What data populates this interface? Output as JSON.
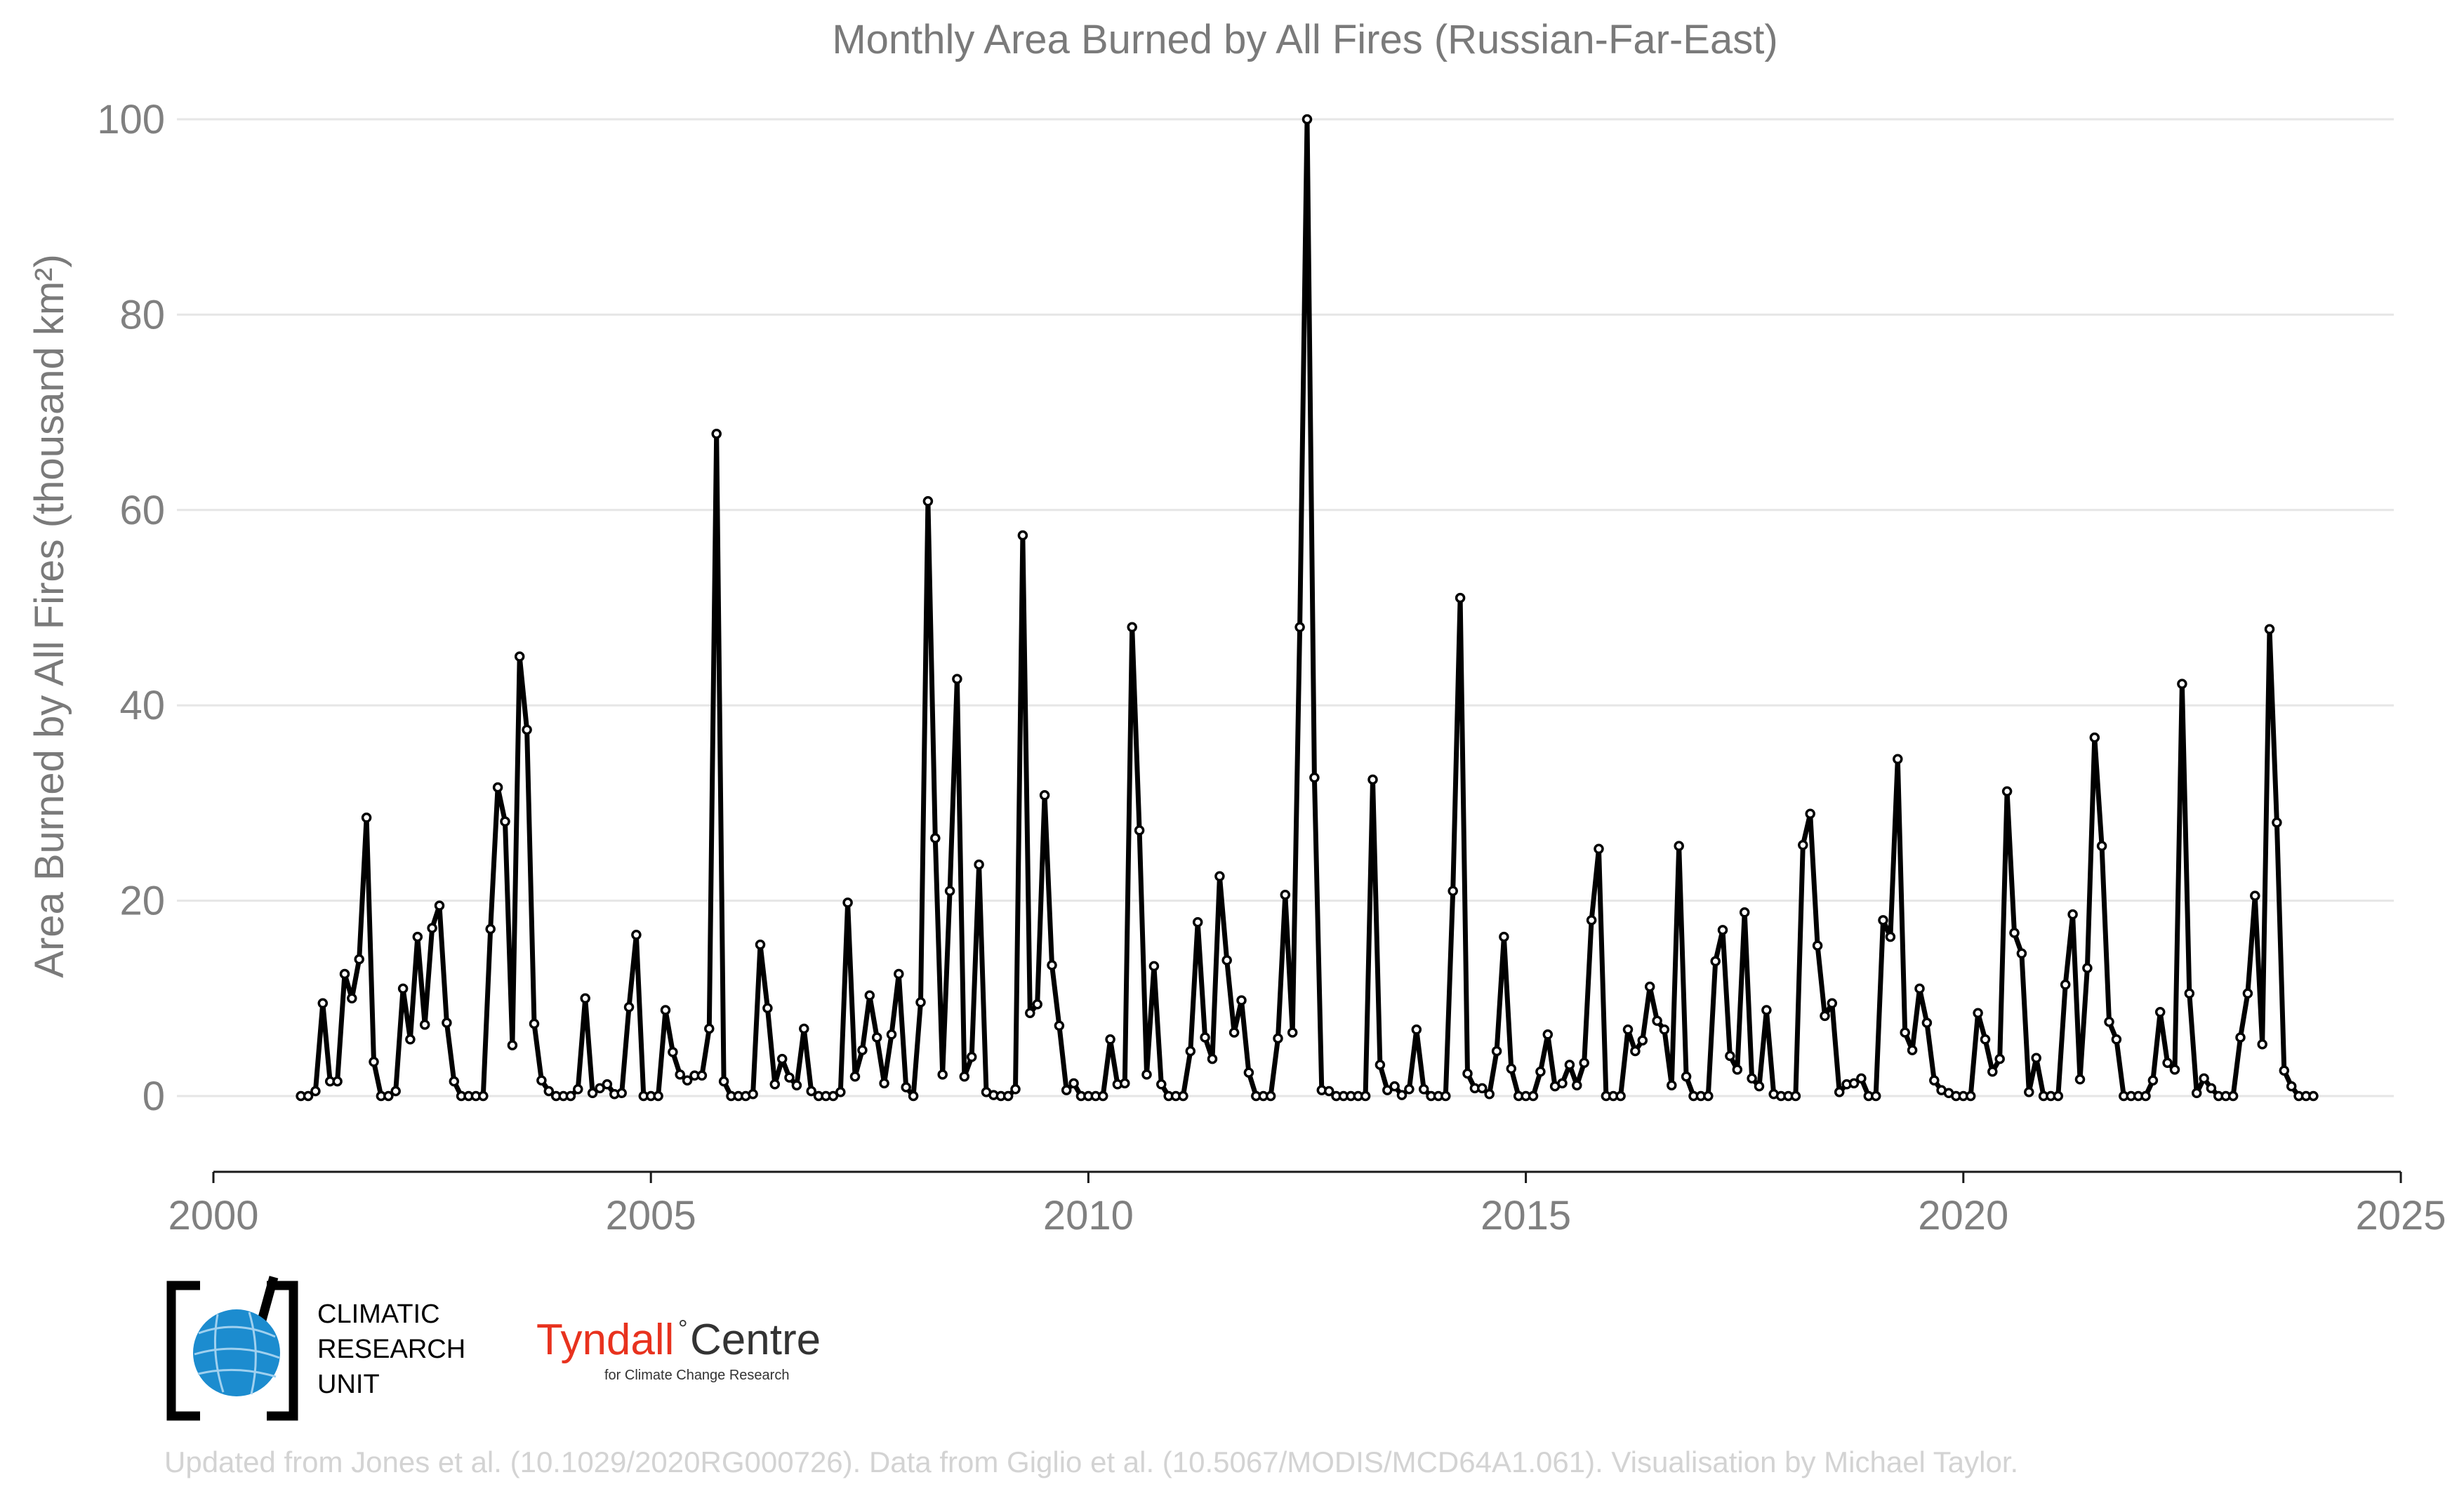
{
  "chart_data": {
    "type": "line",
    "title": "Monthly Area Burned by All Fires (Russian-Far-East)",
    "ylabel": "Area Burned by All Fires (thousand km²)",
    "xlabel": "",
    "xlim": [
      2000,
      2025
    ],
    "ylim": [
      -8,
      100
    ],
    "x_ticks": [
      2000,
      2005,
      2010,
      2015,
      2020,
      2025
    ],
    "y_ticks": [
      0,
      20,
      40,
      60,
      80,
      100
    ],
    "grid": "horizontal",
    "legend": "none",
    "line_color": "#000000",
    "marker": "open-circle",
    "start": "2001-01",
    "frequency": "monthly",
    "end": "2024-01",
    "values": [
      0,
      0,
      0.5,
      9.5,
      1.5,
      1.5,
      12.5,
      10,
      14,
      28.5,
      3.5,
      0,
      0,
      0.5,
      11,
      5.8,
      16.3,
      7.3,
      17.2,
      19.5,
      7.5,
      1.5,
      0,
      0,
      0,
      0,
      17.1,
      31.6,
      28.1,
      5.2,
      45,
      37.5,
      7.4,
      1.6,
      0.5,
      0,
      0,
      0,
      0.7,
      10,
      0.3,
      0.8,
      1.2,
      0.2,
      0.3,
      9.1,
      16.5,
      0,
      0,
      0,
      8.8,
      4.5,
      2.2,
      1.6,
      2.1,
      2.1,
      6.9,
      67.8,
      1.5,
      0,
      0,
      0,
      0.2,
      15.5,
      9,
      1.2,
      3.8,
      1.9,
      1.1,
      6.9,
      0.5,
      0,
      0,
      0,
      0.4,
      19.8,
      2,
      4.7,
      10.3,
      6,
      1.3,
      6.3,
      12.5,
      0.9,
      0,
      9.6,
      60.9,
      26.4,
      2.2,
      21,
      42.7,
      2,
      4,
      23.7,
      0.4,
      0.1,
      0,
      0,
      0.7,
      57.4,
      8.5,
      9.4,
      30.8,
      13.4,
      7.2,
      0.6,
      1.3,
      0,
      0,
      0,
      0,
      5.8,
      1.2,
      1.3,
      48,
      27.2,
      2.2,
      13.3,
      1.2,
      0,
      0,
      0,
      4.6,
      17.8,
      6,
      3.8,
      22.5,
      13.9,
      6.5,
      9.8,
      2.4,
      0,
      0,
      0,
      5.9,
      20.6,
      6.5,
      48,
      100,
      32.6,
      0.6,
      0.5,
      0,
      0,
      0,
      0,
      0,
      32.4,
      3.2,
      0.6,
      1,
      0.1,
      0.7,
      6.8,
      0.7,
      0,
      0,
      0,
      21,
      51,
      2.3,
      0.8,
      0.8,
      0.2,
      4.6,
      16.3,
      2.8,
      0,
      0,
      0,
      2.5,
      6.3,
      1,
      1.3,
      3.2,
      1.1,
      3.4,
      18,
      25.3,
      0,
      0,
      0,
      6.8,
      4.6,
      5.7,
      11.2,
      7.7,
      6.8,
      1.1,
      25.6,
      2,
      0,
      0,
      0,
      13.8,
      17,
      4.1,
      2.7,
      18.8,
      1.8,
      1,
      8.8,
      0.2,
      0,
      0,
      0,
      25.7,
      28.9,
      15.4,
      8.2,
      9.5,
      0.4,
      1.2,
      1.3,
      1.8,
      0,
      0,
      18,
      16.3,
      34.5,
      6.5,
      4.7,
      11,
      7.5,
      1.6,
      0.6,
      0.3,
      0,
      0,
      0,
      8.5,
      5.8,
      2.5,
      3.8,
      31.2,
      16.7,
      14.6,
      0.4,
      3.9,
      0,
      0,
      0,
      11.4,
      18.6,
      1.7,
      13.1,
      36.7,
      25.6,
      7.6,
      5.8,
      0,
      0,
      0,
      0,
      1.6,
      8.6,
      3.4,
      2.7,
      42.2,
      10.5,
      0.3,
      1.8,
      0.8,
      0,
      0,
      0,
      6,
      10.5,
      20.5,
      5.3,
      47.8,
      28,
      2.6,
      1,
      0,
      0,
      0
    ]
  },
  "logos": {
    "cru_line1": "CLIMATIC",
    "cru_line2": "RESEARCH",
    "cru_line3": "UNIT",
    "tyndall_name": "Tyndall",
    "tyndall_degree": "°",
    "tyndall_centre": "Centre",
    "tyndall_subtitle": "for Climate Change Research"
  },
  "credit": "Updated from Jones et al. (10.1029/2020RG000726). Data from Giglio et al. (10.5067/MODIS/MCD64A1.061). Visualisation by Michael Taylor."
}
